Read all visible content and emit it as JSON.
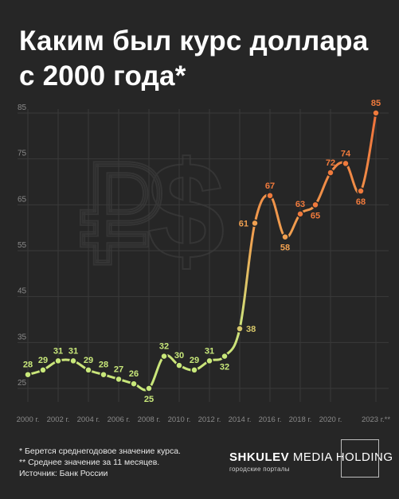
{
  "title": {
    "line1": "Каким был курс доллара",
    "line2": "с 2000 года*"
  },
  "chart_data": {
    "type": "line",
    "yticks": [
      25,
      35,
      45,
      55,
      65,
      75,
      85
    ],
    "ylim": [
      23,
      87
    ],
    "xlim": [
      2000,
      2023
    ],
    "xticks": [
      {
        "x": 2000,
        "label": "2000 г."
      },
      {
        "x": 2002,
        "label": "2002 г."
      },
      {
        "x": 2004,
        "label": "2004 г."
      },
      {
        "x": 2006,
        "label": "2006 г."
      },
      {
        "x": 2008,
        "label": "2008 г."
      },
      {
        "x": 2010,
        "label": "2010 г."
      },
      {
        "x": 2012,
        "label": "2012 г."
      },
      {
        "x": 2014,
        "label": "2014 г."
      },
      {
        "x": 2016,
        "label": "2016 г."
      },
      {
        "x": 2018,
        "label": "2018 г."
      },
      {
        "x": 2020,
        "label": "2020 г."
      },
      {
        "x": 2023,
        "label": "2023 г.**"
      }
    ],
    "points": [
      {
        "x": 2000,
        "y": 28,
        "label": "28"
      },
      {
        "x": 2001,
        "y": 29,
        "label": "29"
      },
      {
        "x": 2002,
        "y": 31,
        "label": "31"
      },
      {
        "x": 2003,
        "y": 31,
        "label": "31"
      },
      {
        "x": 2004,
        "y": 29,
        "label": "29"
      },
      {
        "x": 2005,
        "y": 28,
        "label": "28"
      },
      {
        "x": 2006,
        "y": 27,
        "label": "27"
      },
      {
        "x": 2007,
        "y": 26,
        "label": "26"
      },
      {
        "x": 2008,
        "y": 25,
        "label": "25"
      },
      {
        "x": 2009,
        "y": 32,
        "label": "32"
      },
      {
        "x": 2010,
        "y": 30,
        "label": "30"
      },
      {
        "x": 2011,
        "y": 29,
        "label": "29"
      },
      {
        "x": 2012,
        "y": 31,
        "label": "31"
      },
      {
        "x": 2013,
        "y": 32,
        "label": "32"
      },
      {
        "x": 2014,
        "y": 38,
        "label": "38"
      },
      {
        "x": 2015,
        "y": 61,
        "label": "61"
      },
      {
        "x": 2016,
        "y": 67,
        "label": "67"
      },
      {
        "x": 2017,
        "y": 58,
        "label": "58"
      },
      {
        "x": 2018,
        "y": 63,
        "label": "63"
      },
      {
        "x": 2019,
        "y": 65,
        "label": "65"
      },
      {
        "x": 2020,
        "y": 72,
        "label": "72"
      },
      {
        "x": 2021,
        "y": 74,
        "label": "74"
      },
      {
        "x": 2022,
        "y": 68,
        "label": "68"
      },
      {
        "x": 2023,
        "y": 85,
        "label": "85"
      }
    ],
    "colors": {
      "low": "#c8e87a",
      "high": "#f07a3c",
      "grid": "#3a3a3a",
      "tick": "#8a8a8a",
      "watermark": "#353535"
    }
  },
  "footnotes": {
    "line1": "* Берется среднегодовое значение курса.",
    "line2": "** Среднее значение за 11 месяцев.",
    "line3": "Источник: Банк России"
  },
  "brand": {
    "bold": "SHKULEV",
    "rest": " MEDIA HOLDING",
    "subtitle": "городские порталы"
  }
}
